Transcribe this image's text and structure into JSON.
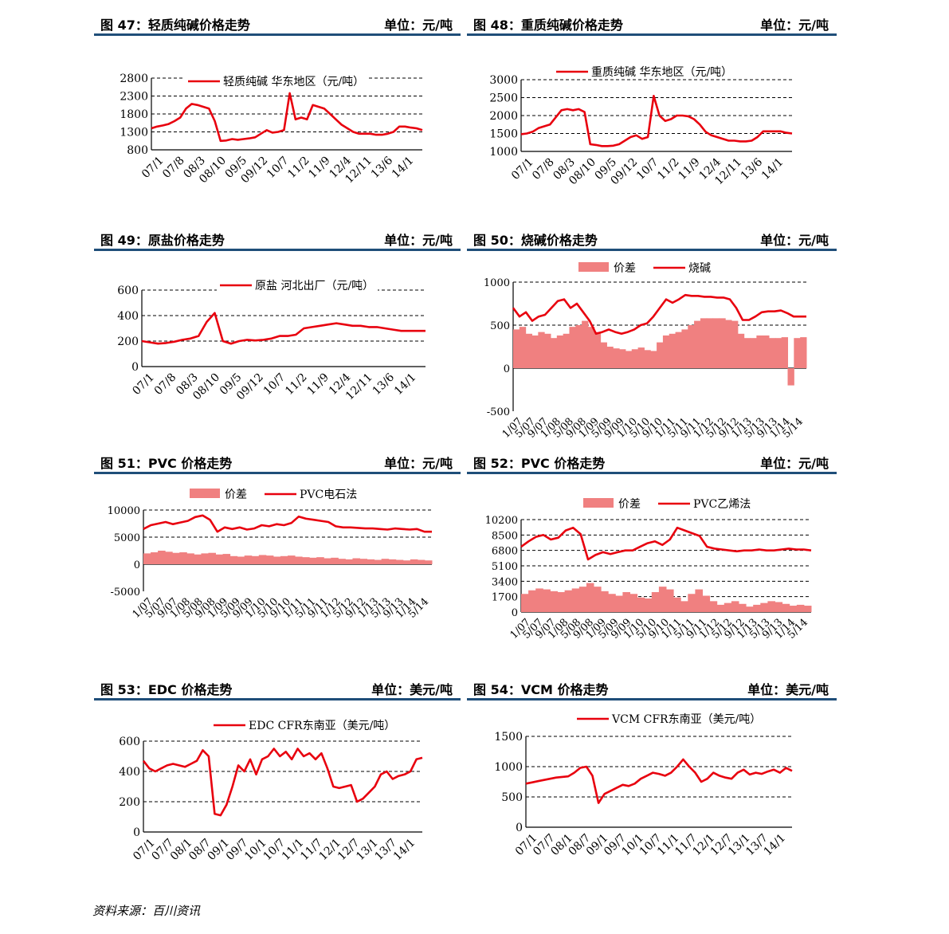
{
  "colors": {
    "line": "#e8000e",
    "area": "#f08080",
    "rule": "#1f4e79"
  },
  "source": "资料来源：百川资讯",
  "charts": [
    {
      "id": "fig47",
      "title": "图 47：轻质纯碱价格走势",
      "unit": "单位：元/吨",
      "chart_data": {
        "type": "line",
        "series": [
          {
            "name": "轻质纯碱 华东地区（元/吨）",
            "values": [
              1400,
              1450,
              1480,
              1520,
              1600,
              1700,
              1950,
              2080,
              2050,
              2000,
              1950,
              1600,
              1050,
              1060,
              1100,
              1080,
              1100,
              1120,
              1150,
              1250,
              1350,
              1280,
              1300,
              1350,
              2380,
              1650,
              1700,
              1650,
              2050,
              2000,
              1950,
              1800,
              1650,
              1500,
              1400,
              1300,
              1250,
              1250,
              1250,
              1220,
              1220,
              1250,
              1300,
              1450,
              1450,
              1420,
              1400,
              1350
            ]
          }
        ],
        "x_tick_labels": [
          "07/1",
          "07/8",
          "08/3",
          "08/10",
          "09/5",
          "09/12",
          "10/7",
          "11/2",
          "11/9",
          "12/4",
          "12/11",
          "13/6",
          "14/1"
        ],
        "y_ticks": [
          800,
          1300,
          1800,
          2300,
          2800
        ],
        "ylim": [
          800,
          2800
        ]
      }
    },
    {
      "id": "fig48",
      "title": "图 48：重质纯碱价格走势",
      "unit": "单位：元/吨",
      "chart_data": {
        "type": "line",
        "series": [
          {
            "name": "重质纯碱 华东地区（元/吨）",
            "values": [
              1480,
              1500,
              1550,
              1650,
              1700,
              1750,
              1950,
              2150,
              2180,
              2150,
              2180,
              2100,
              1200,
              1180,
              1150,
              1150,
              1160,
              1200,
              1300,
              1400,
              1450,
              1350,
              1400,
              2550,
              2000,
              1850,
              1900,
              2000,
              2000,
              1980,
              1900,
              1750,
              1550,
              1450,
              1400,
              1350,
              1300,
              1300,
              1280,
              1280,
              1300,
              1400,
              1560,
              1560,
              1560,
              1560,
              1520,
              1500
            ]
          }
        ],
        "x_tick_labels": [
          "07/1",
          "07/8",
          "08/3",
          "08/10",
          "09/5",
          "09/12",
          "10/7",
          "11/2",
          "11/9",
          "12/4",
          "12/11",
          "13/6",
          "14/1"
        ],
        "y_ticks": [
          1000,
          1500,
          2000,
          2500,
          3000
        ],
        "ylim": [
          1000,
          3000
        ]
      }
    },
    {
      "id": "fig49",
      "title": "图 49：原盐价格走势",
      "unit": "单位：元/吨",
      "chart_data": {
        "type": "line",
        "series": [
          {
            "name": "原盐 河北出厂（元/吨）",
            "values": [
              200,
              190,
              180,
              185,
              195,
              210,
              220,
              240,
              350,
              420,
              200,
              180,
              200,
              210,
              205,
              210,
              220,
              240,
              240,
              250,
              300,
              310,
              320,
              330,
              340,
              330,
              320,
              320,
              310,
              310,
              300,
              290,
              280,
              280,
              280,
              280
            ]
          }
        ],
        "x_tick_labels": [
          "07/1",
          "07/8",
          "08/3",
          "08/10",
          "09/5",
          "09/12",
          "10/7",
          "11/2",
          "11/9",
          "12/4",
          "12/11",
          "13/6",
          "14/1"
        ],
        "y_ticks": [
          0,
          200,
          400,
          600
        ],
        "ylim": [
          0,
          600
        ]
      }
    },
    {
      "id": "fig50",
      "title": "图 50：烧碱价格走势",
      "unit": "单位：元/吨",
      "chart_data": {
        "type": "area+line",
        "series": [
          {
            "name": "价差",
            "kind": "area",
            "values": [
              450,
              480,
              400,
              380,
              420,
              400,
              350,
              380,
              400,
              480,
              500,
              550,
              480,
              420,
              300,
              250,
              230,
              220,
              200,
              220,
              240,
              210,
              200,
              300,
              380,
              400,
              420,
              450,
              500,
              550,
              580,
              580,
              580,
              580,
              560,
              550,
              400,
              350,
              350,
              380,
              380,
              350,
              350,
              360,
              -200,
              350,
              360
            ]
          },
          {
            "name": "烧碱",
            "kind": "line",
            "values": [
              700,
              600,
              650,
              550,
              600,
              620,
              700,
              780,
              800,
              700,
              750,
              650,
              550,
              400,
              420,
              450,
              420,
              400,
              420,
              450,
              500,
              520,
              600,
              700,
              800,
              760,
              800,
              850,
              840,
              840,
              830,
              830,
              820,
              820,
              800,
              700,
              560,
              560,
              600,
              650,
              660,
              660,
              670,
              640,
              600,
              600,
              600
            ]
          }
        ],
        "x_tick_labels": [
          "1/07",
          "5/07",
          "9/07",
          "1/08",
          "5/08",
          "9/08",
          "1/09",
          "5/09",
          "9/09",
          "1/10",
          "5/10",
          "9/10",
          "1/11",
          "5/11",
          "9/11",
          "1/12",
          "5/12",
          "9/12",
          "1/13",
          "5/13",
          "9/13",
          "1/14",
          "5/14"
        ],
        "y_ticks": [
          -500,
          0,
          500,
          1000
        ],
        "ylim": [
          -500,
          1000
        ]
      }
    },
    {
      "id": "fig51",
      "title": "图 51：PVC 价格走势",
      "unit": "单位：元/吨",
      "chart_data": {
        "type": "area+line",
        "series": [
          {
            "name": "价差",
            "kind": "area",
            "values": [
              2000,
              2200,
              2500,
              2300,
              2100,
              2200,
              2000,
              1800,
              2000,
              2100,
              1800,
              1900,
              1500,
              1400,
              1600,
              1500,
              1700,
              1600,
              1400,
              1500,
              1600,
              1400,
              1300,
              1200,
              1300,
              1100,
              1200,
              1000,
              900,
              1100,
              1000,
              900,
              800,
              1000,
              900,
              800,
              700,
              900,
              800,
              700
            ]
          },
          {
            "name": "PVC电石法",
            "kind": "line",
            "values": [
              6500,
              7200,
              7500,
              7800,
              7400,
              7700,
              8000,
              8700,
              9000,
              8200,
              6000,
              6800,
              6500,
              6800,
              6400,
              6600,
              7200,
              7000,
              7400,
              7200,
              7600,
              8800,
              8400,
              8200,
              8000,
              7800,
              7000,
              6800,
              6800,
              6700,
              6600,
              6600,
              6500,
              6400,
              6600,
              6500,
              6400,
              6500,
              6000,
              6000
            ]
          }
        ],
        "x_tick_labels": [
          "1/07",
          "5/07",
          "9/07",
          "1/08",
          "5/08",
          "9/08",
          "1/09",
          "5/09",
          "9/09",
          "1/10",
          "5/10",
          "9/10",
          "1/11",
          "5/11",
          "9/11",
          "1/12",
          "5/12",
          "9/12",
          "1/13",
          "5/13",
          "9/13",
          "1/14",
          "5/14"
        ],
        "y_ticks": [
          -5000,
          0,
          5000,
          10000
        ],
        "ylim": [
          -5000,
          10000
        ]
      }
    },
    {
      "id": "fig52",
      "title": "图 52：PVC 价格走势",
      "unit": "单位：元/吨",
      "chart_data": {
        "type": "area+line",
        "series": [
          {
            "name": "价差",
            "kind": "area",
            "values": [
              2000,
              2400,
              2600,
              2500,
              2300,
              2200,
              2400,
              2600,
              2800,
              3200,
              2800,
              2300,
              2000,
              1800,
              2200,
              2000,
              1600,
              1500,
              2200,
              2800,
              2500,
              1600,
              1200,
              2000,
              2500,
              1800,
              1200,
              800,
              1000,
              1200,
              900,
              600,
              800,
              1000,
              1200,
              1100,
              900,
              700,
              800,
              700
            ]
          },
          {
            "name": "PVC乙烯法",
            "kind": "line",
            "values": [
              7200,
              7800,
              8300,
              8500,
              8000,
              8200,
              9000,
              9300,
              8600,
              5800,
              6300,
              6600,
              6400,
              6600,
              6800,
              6800,
              7200,
              7600,
              7800,
              7400,
              8000,
              9300,
              9000,
              8700,
              8400,
              7200,
              7000,
              6900,
              6800,
              6700,
              6800,
              6800,
              6900,
              6800,
              6800,
              6900,
              7000,
              6900,
              6900,
              6800
            ]
          }
        ],
        "x_tick_labels": [
          "1/07",
          "5/07",
          "9/07",
          "1/08",
          "5/08",
          "9/08",
          "1/09",
          "5/09",
          "9/09",
          "1/10",
          "5/10",
          "9/10",
          "1/11",
          "5/11",
          "9/11",
          "1/12",
          "5/12",
          "9/12",
          "1/13",
          "5/13",
          "9/13",
          "1/14",
          "5/14"
        ],
        "y_ticks": [
          0,
          1700,
          3400,
          5100,
          6800,
          8500,
          10200
        ],
        "ylim": [
          0,
          10200
        ]
      }
    },
    {
      "id": "fig53",
      "title": "图 53：EDC 价格走势",
      "unit": "单位：美元/吨",
      "chart_data": {
        "type": "line",
        "series": [
          {
            "name": "EDC CFR东南亚（美元/吨）",
            "values": [
              470,
              420,
              400,
              420,
              440,
              450,
              440,
              430,
              450,
              470,
              540,
              500,
              120,
              110,
              180,
              300,
              440,
              400,
              480,
              380,
              480,
              500,
              550,
              500,
              530,
              480,
              550,
              500,
              520,
              480,
              520,
              420,
              300,
              290,
              300,
              310,
              200,
              220,
              260,
              300,
              380,
              400,
              350,
              370,
              380,
              400,
              480,
              490
            ]
          }
        ],
        "x_tick_labels": [
          "07/1",
          "07/7",
          "08/1",
          "08/7",
          "09/1",
          "09/7",
          "10/1",
          "10/7",
          "11/1",
          "11/7",
          "12/1",
          "12/7",
          "13/1",
          "13/7",
          "14/1"
        ],
        "y_ticks": [
          0,
          200,
          400,
          600
        ],
        "ylim": [
          0,
          600
        ]
      }
    },
    {
      "id": "fig54",
      "title": "图 54：VCM 价格走势",
      "unit": "单位：美元/吨",
      "chart_data": {
        "type": "line",
        "series": [
          {
            "name": "VCM CFR东南亚（美元/吨）",
            "values": [
              720,
              740,
              760,
              780,
              800,
              820,
              830,
              840,
              900,
              980,
              1000,
              850,
              400,
              550,
              600,
              650,
              700,
              680,
              720,
              800,
              850,
              900,
              880,
              850,
              900,
              1000,
              1120,
              1000,
              900,
              750,
              800,
              900,
              850,
              820,
              800,
              900,
              950,
              870,
              900,
              880,
              920,
              950,
              900,
              980,
              930
            ]
          }
        ],
        "x_tick_labels": [
          "07/1",
          "07/7",
          "08/1",
          "08/7",
          "09/1",
          "09/7",
          "10/1",
          "10/7",
          "11/1",
          "11/7",
          "12/1",
          "12/7",
          "13/1",
          "13/7",
          "14/1"
        ],
        "y_ticks": [
          0,
          500,
          1000,
          1500
        ],
        "ylim": [
          0,
          1500
        ]
      }
    }
  ]
}
